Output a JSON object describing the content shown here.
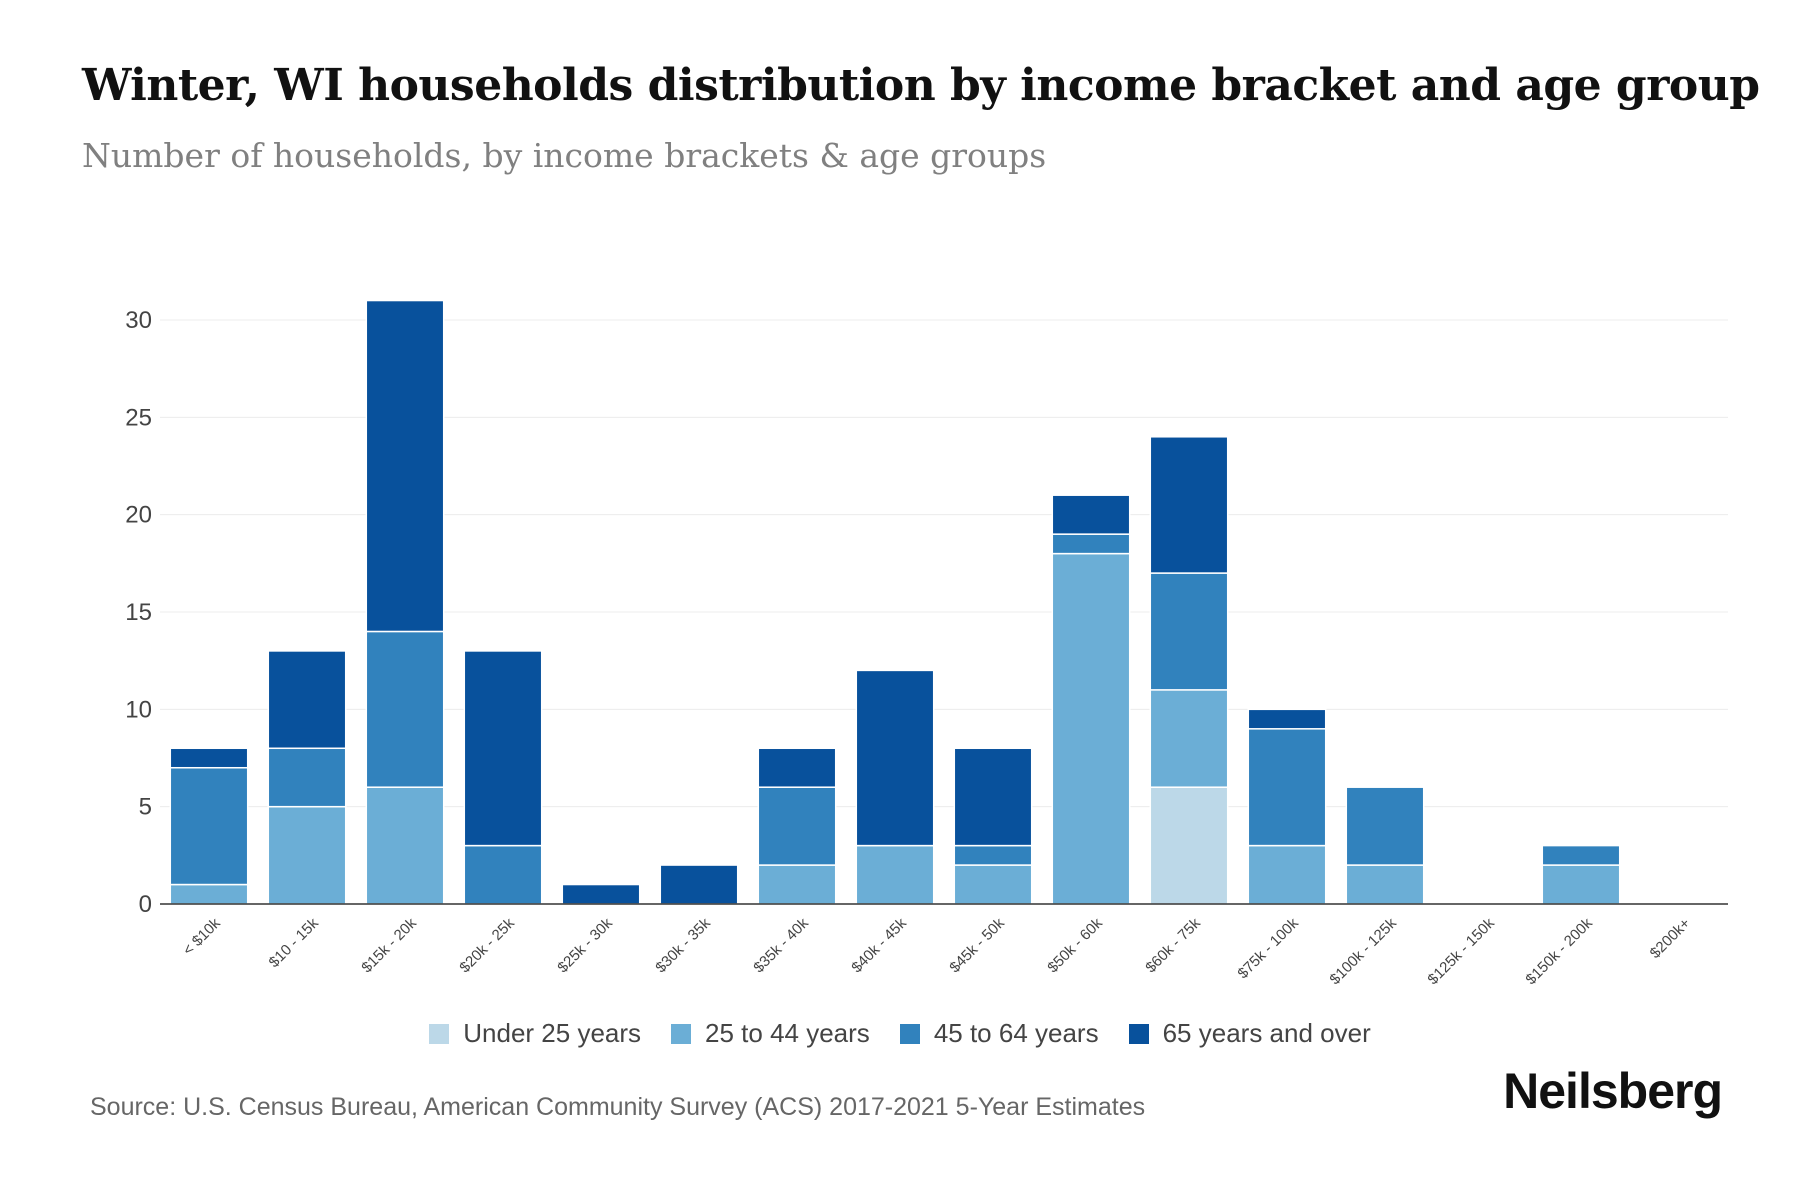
{
  "header": {
    "title": "Winter, WI households distribution by income bracket and age group",
    "subtitle": "Number of households, by income brackets & age groups"
  },
  "footer": {
    "source": "Source: U.S. Census Bureau, American Community Survey (ACS) 2017-2021 5-Year Estimates",
    "brand": "Neilsberg"
  },
  "chart_data": {
    "type": "bar",
    "stacked": true,
    "title": "Winter, WI households distribution by income bracket and age group",
    "subtitle": "Number of households, by income brackets & age groups",
    "xlabel": "",
    "ylabel": "",
    "ylim": [
      0,
      30
    ],
    "yticks": [
      0,
      5,
      10,
      15,
      20,
      25,
      30
    ],
    "grid": true,
    "legend_position": "bottom",
    "categories": [
      "< $10k",
      "$10 - 15k",
      "$15k - 20k",
      "$20k - 25k",
      "$25k - 30k",
      "$30k - 35k",
      "$35k - 40k",
      "$40k - 45k",
      "$45k - 50k",
      "$50k - 60k",
      "$60k - 75k",
      "$75k - 100k",
      "$100k - 125k",
      "$125k - 150k",
      "$150k - 200k",
      "$200k+"
    ],
    "series": [
      {
        "name": "Under 25 years",
        "color": "#bcd8e8",
        "values": [
          0,
          0,
          0,
          0,
          0,
          0,
          0,
          0,
          0,
          0,
          6,
          0,
          0,
          0,
          0,
          0
        ]
      },
      {
        "name": "25 to 44 years",
        "color": "#6baed6",
        "values": [
          1,
          5,
          6,
          0,
          0,
          0,
          2,
          3,
          2,
          18,
          5,
          3,
          2,
          0,
          2,
          0
        ]
      },
      {
        "name": "45 to 64 years",
        "color": "#3182bd",
        "values": [
          6,
          3,
          8,
          3,
          0,
          0,
          4,
          0,
          1,
          1,
          6,
          6,
          4,
          0,
          1,
          0
        ]
      },
      {
        "name": "65 years and over",
        "color": "#08519c",
        "values": [
          1,
          5,
          17,
          10,
          1,
          2,
          2,
          9,
          5,
          2,
          7,
          1,
          0,
          0,
          0,
          0
        ]
      }
    ]
  }
}
